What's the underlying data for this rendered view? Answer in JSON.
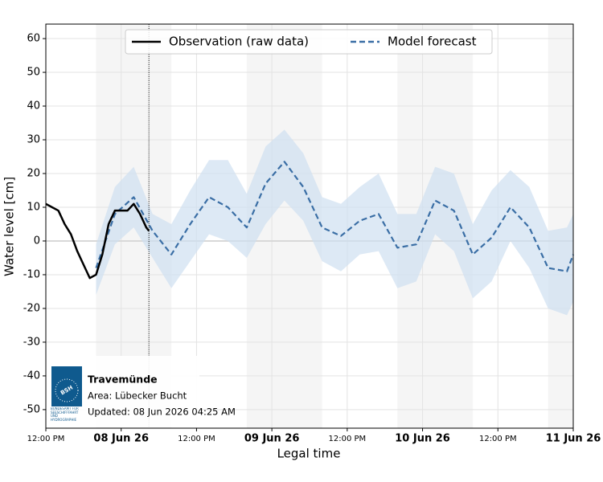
{
  "chart_data": {
    "type": "line",
    "ylabel": "Water level [cm]",
    "xlabel": "Legal time",
    "ylim": [
      -55.5,
      64.3
    ],
    "yticks": [
      -50,
      -40,
      -30,
      -20,
      -10,
      0,
      10,
      20,
      30,
      40,
      50,
      60
    ],
    "xlim": [
      "2026-06-07T12:00",
      "2026-06-11T00:00"
    ],
    "xticks": [
      {
        "value": "2026-06-07T12:00",
        "label": "12:00 PM"
      },
      {
        "value": "2026-06-08T00:00",
        "label": "08 Jun 26"
      },
      {
        "value": "2026-06-08T12:00",
        "label": "12:00 PM"
      },
      {
        "value": "2026-06-09T00:00",
        "label": "09 Jun 26"
      },
      {
        "value": "2026-06-09T12:00",
        "label": "12:00 PM"
      },
      {
        "value": "2026-06-10T00:00",
        "label": "10 Jun 26"
      },
      {
        "value": "2026-06-10T12:00",
        "label": "12:00 PM"
      },
      {
        "value": "2026-06-11T00:00",
        "label": "11 Jun 26"
      }
    ],
    "grid": true,
    "legend": "top",
    "shaded_periods": [
      [
        "2026-06-07T20:00",
        "2026-06-08T08:00"
      ],
      [
        "2026-06-08T20:00",
        "2026-06-09T08:00"
      ],
      [
        "2026-06-09T20:00",
        "2026-06-10T08:00"
      ],
      [
        "2026-06-10T20:00",
        "2026-06-11T00:00"
      ]
    ],
    "now": "2026-06-08T04:25",
    "series": [
      {
        "name": "Observation (raw data)",
        "color": "#000000",
        "style": "solid",
        "x": [
          "2026-06-07T12:00",
          "2026-06-07T13:00",
          "2026-06-07T14:00",
          "2026-06-07T15:00",
          "2026-06-07T16:00",
          "2026-06-07T17:00",
          "2026-06-07T18:00",
          "2026-06-07T19:00",
          "2026-06-07T20:00",
          "2026-06-07T21:00",
          "2026-06-07T22:00",
          "2026-06-07T23:00",
          "2026-06-08T00:00",
          "2026-06-08T01:00",
          "2026-06-08T02:00",
          "2026-06-08T03:00",
          "2026-06-08T04:00",
          "2026-06-08T04:25"
        ],
        "values": [
          11,
          10,
          9,
          5,
          2,
          -3,
          -7,
          -11,
          -10,
          -4,
          5,
          9,
          9,
          9,
          11,
          8,
          4,
          3
        ]
      },
      {
        "name": "Model forecast",
        "color": "#3a6ea5",
        "band_color": "#cfe0f1",
        "style": "dashed",
        "x": [
          "2026-06-07T20:00",
          "2026-06-07T23:00",
          "2026-06-08T02:00",
          "2026-06-08T05:00",
          "2026-06-08T08:00",
          "2026-06-08T11:00",
          "2026-06-08T14:00",
          "2026-06-08T17:00",
          "2026-06-08T20:00",
          "2026-06-08T23:00",
          "2026-06-09T02:00",
          "2026-06-09T05:00",
          "2026-06-09T08:00",
          "2026-06-09T11:00",
          "2026-06-09T14:00",
          "2026-06-09T17:00",
          "2026-06-09T20:00",
          "2026-06-09T23:00",
          "2026-06-10T02:00",
          "2026-06-10T05:00",
          "2026-06-10T08:00",
          "2026-06-10T11:00",
          "2026-06-10T14:00",
          "2026-06-10T17:00",
          "2026-06-10T20:00",
          "2026-06-10T23:00",
          "2026-06-11T00:00"
        ],
        "values": [
          -8,
          8,
          13,
          3,
          -4,
          5,
          13,
          10,
          4,
          17,
          23.5,
          16,
          4,
          1.5,
          6,
          8,
          -2,
          -1,
          12,
          9,
          -4,
          1,
          10,
          4,
          -8,
          -9,
          -4
        ],
        "lower": [
          -16,
          -1,
          4,
          -5,
          -14,
          -6,
          2,
          0,
          -5,
          5,
          12,
          6,
          -6,
          -9,
          -4,
          -3,
          -14,
          -12,
          2,
          -3,
          -17,
          -12,
          0,
          -8,
          -20,
          -22,
          -18
        ],
        "upper": [
          -1,
          16,
          22,
          8,
          5,
          15,
          24,
          24,
          14,
          28,
          33,
          26,
          13,
          11,
          16,
          20,
          8,
          8,
          22,
          20,
          5,
          15,
          21,
          16,
          3,
          4,
          8
        ]
      }
    ]
  },
  "info": {
    "logo_text": "BSH",
    "logo_caption": "BUNDESAMT FÜR SEESCHIFFFAHRT UND HYDROGRAPHIE",
    "station": "Travemünde",
    "area": "Area: Lübecker Bucht",
    "updated": "Updated: 08 Jun 2026 04:25 AM"
  }
}
